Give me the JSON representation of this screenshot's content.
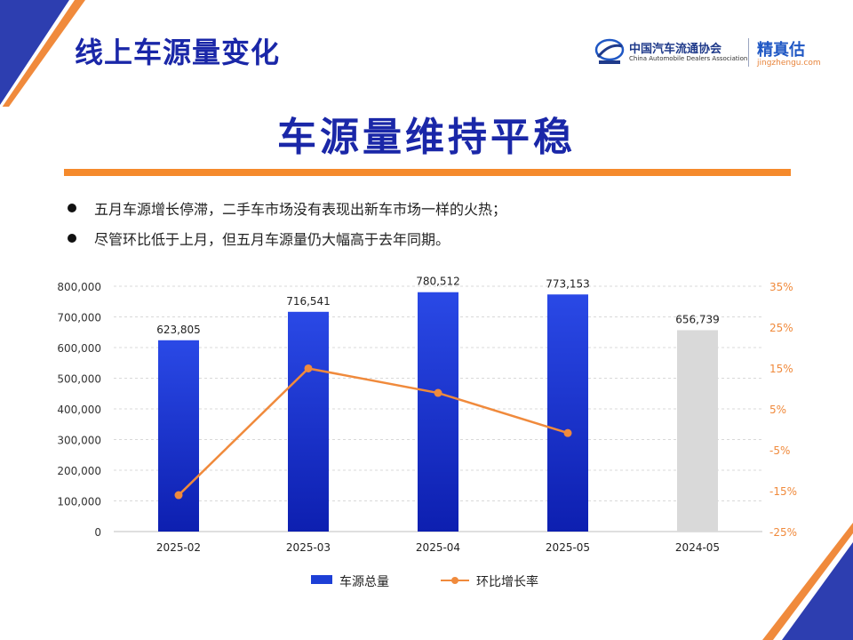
{
  "header": {
    "title": "线上车源量变化",
    "logo_cn": "中国汽车流通协会",
    "logo_en": "China Automobile Dealers Association",
    "brand_cn": "精真估",
    "brand_url": "jingzhengu.com"
  },
  "headline": "车源量维持平稳",
  "bullets": [
    "五月车源增长停滞，二手车市场没有表现出新车市场一样的火热；",
    "尽管环比低于上月，但五月车源量仍大幅高于去年同期。"
  ],
  "colors": {
    "bar_blue_top": "#2a49e6",
    "bar_blue_bottom": "#0d1fb0",
    "bar_gray": "#d9d9d9",
    "line_orange": "#f08a3c",
    "title_blue": "#1a27a8",
    "accent_orange": "#f58a2c"
  },
  "chart_data": {
    "type": "bar",
    "categories": [
      "2025-02",
      "2025-03",
      "2025-04",
      "2025-05",
      "2024-05"
    ],
    "series": [
      {
        "name": "车源总量",
        "type": "bar",
        "axis": "left",
        "values": [
          623805,
          716541,
          780512,
          773153,
          656739
        ],
        "labels": [
          "623,805",
          "716,541",
          "780,512",
          "773,153",
          "656,739"
        ],
        "highlight_gray_index": 4
      },
      {
        "name": "环比增长率",
        "type": "line",
        "axis": "right",
        "values": [
          -16.1,
          14.9,
          8.9,
          -0.9,
          null
        ]
      }
    ],
    "y_left": {
      "min": 0,
      "max": 800000,
      "ticks": [
        "0",
        "100,000",
        "200,000",
        "300,000",
        "400,000",
        "500,000",
        "600,000",
        "700,000",
        "800,000"
      ]
    },
    "y_right": {
      "min": -25,
      "max": 35,
      "ticks": [
        "-25%",
        "-15%",
        "-5%",
        "5%",
        "15%",
        "25%",
        "35%"
      ]
    },
    "grid": true,
    "legend_position": "bottom"
  }
}
